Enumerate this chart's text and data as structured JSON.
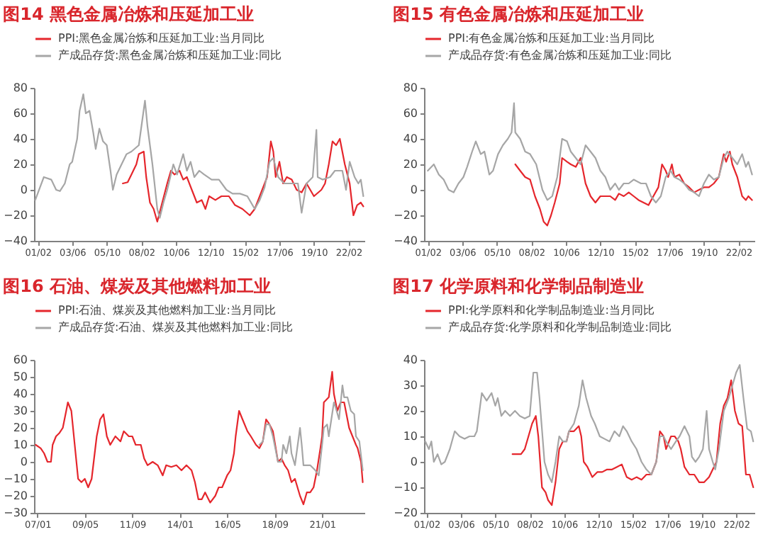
{
  "chart_data": [
    {
      "type": "line",
      "title": "图14  黑色金属冶炼和压延加工业",
      "xlim": [
        "2000-11",
        "2023-03"
      ],
      "xticks": [
        {
          "value": "2001-02",
          "label": "01/02"
        },
        {
          "value": "2003-06",
          "label": "03/06"
        },
        {
          "value": "2005-10",
          "label": "05/10"
        },
        {
          "value": "2008-02",
          "label": "08/02"
        },
        {
          "value": "2010-06",
          "label": "10/06"
        },
        {
          "value": "2012-10",
          "label": "12/10"
        },
        {
          "value": "2015-02",
          "label": "15/02"
        },
        {
          "value": "2017-06",
          "label": "17/06"
        },
        {
          "value": "2019-10",
          "label": "19/10"
        },
        {
          "value": "2022-02",
          "label": "22/02"
        }
      ],
      "ylim": [
        -40,
        80
      ],
      "yticks": [
        -40,
        -20,
        0,
        20,
        40,
        60,
        80
      ],
      "legend": "top",
      "series": [
        {
          "name": "PPI:黑色金属冶炼和压延加工业:当月同比",
          "color": "#e5262c",
          "x": [
            "2006-11",
            "2007-03",
            "2007-06",
            "2007-10",
            "2007-12",
            "2008-04",
            "2008-06",
            "2008-09",
            "2008-12",
            "2009-03",
            "2009-07",
            "2009-11",
            "2010-02",
            "2010-05",
            "2010-09",
            "2010-12",
            "2011-03",
            "2011-07",
            "2011-11",
            "2012-03",
            "2012-06",
            "2012-09",
            "2013-02",
            "2013-07",
            "2014-01",
            "2014-06",
            "2014-12",
            "2015-06",
            "2015-10",
            "2016-02",
            "2016-08",
            "2016-11",
            "2017-01",
            "2017-03",
            "2017-06",
            "2017-09",
            "2017-12",
            "2018-04",
            "2018-08",
            "2018-12",
            "2019-04",
            "2019-10",
            "2020-04",
            "2020-07",
            "2020-10",
            "2021-01",
            "2021-04",
            "2021-07",
            "2021-11",
            "2022-03",
            "2022-06",
            "2022-09",
            "2022-12",
            "2023-02"
          ],
          "values": [
            5,
            6,
            12,
            20,
            28,
            30,
            10,
            -10,
            -15,
            -25,
            -10,
            5,
            15,
            12,
            15,
            8,
            10,
            0,
            -10,
            -8,
            -15,
            -5,
            -8,
            -5,
            -5,
            -12,
            -15,
            -20,
            -15,
            -5,
            10,
            38,
            30,
            10,
            22,
            5,
            10,
            8,
            0,
            -2,
            5,
            -5,
            0,
            5,
            20,
            38,
            35,
            40,
            20,
            5,
            -20,
            -12,
            -10,
            -13
          ]
        },
        {
          "name": "产成品存货:黑色金属冶炼和压延加工业:同比",
          "color": "#a6a6a6",
          "x": [
            "2000-12",
            "2001-07",
            "2002-01",
            "2002-05",
            "2002-08",
            "2002-12",
            "2003-04",
            "2003-06",
            "2003-10",
            "2003-12",
            "2004-03",
            "2004-05",
            "2004-08",
            "2004-11",
            "2005-01",
            "2005-04",
            "2005-07",
            "2005-10",
            "2006-01",
            "2006-03",
            "2006-06",
            "2006-10",
            "2007-02",
            "2007-06",
            "2007-12",
            "2008-05",
            "2008-07",
            "2008-11",
            "2009-03",
            "2009-05",
            "2009-08",
            "2009-11",
            "2010-04",
            "2010-07",
            "2010-12",
            "2011-03",
            "2011-06",
            "2011-09",
            "2012-01",
            "2012-05",
            "2012-11",
            "2013-05",
            "2013-11",
            "2014-04",
            "2014-10",
            "2015-04",
            "2015-10",
            "2016-02",
            "2016-06",
            "2016-10",
            "2017-01",
            "2017-05",
            "2017-10",
            "2018-04",
            "2018-09",
            "2018-12",
            "2019-04",
            "2019-09",
            "2019-12",
            "2020-01",
            "2020-05",
            "2020-11",
            "2021-03",
            "2021-09",
            "2021-12",
            "2022-03",
            "2022-07",
            "2022-10",
            "2022-12",
            "2023-02"
          ],
          "values": [
            -8,
            10,
            8,
            0,
            -1,
            5,
            20,
            22,
            40,
            62,
            75,
            60,
            62,
            45,
            32,
            48,
            38,
            35,
            15,
            0,
            12,
            20,
            28,
            30,
            35,
            70,
            50,
            20,
            -15,
            -22,
            -10,
            0,
            20,
            12,
            28,
            15,
            22,
            10,
            15,
            12,
            8,
            8,
            0,
            -3,
            -3,
            -5,
            -15,
            -8,
            2,
            22,
            25,
            10,
            5,
            5,
            5,
            -18,
            5,
            10,
            47,
            10,
            8,
            10,
            15,
            15,
            0,
            22,
            10,
            5,
            8,
            -5
          ]
        }
      ]
    },
    {
      "type": "line",
      "title": "图15  有色金属冶炼和压延加工业",
      "xlim": [
        "2000-11",
        "2023-03"
      ],
      "xticks": [
        {
          "value": "2001-02",
          "label": "01/02"
        },
        {
          "value": "2003-06",
          "label": "03/06"
        },
        {
          "value": "2005-10",
          "label": "05/10"
        },
        {
          "value": "2008-02",
          "label": "08/02"
        },
        {
          "value": "2010-06",
          "label": "10/06"
        },
        {
          "value": "2012-10",
          "label": "12/10"
        },
        {
          "value": "2015-02",
          "label": "15/02"
        },
        {
          "value": "2017-06",
          "label": "17/06"
        },
        {
          "value": "2019-10",
          "label": "19/10"
        },
        {
          "value": "2022-02",
          "label": "22/02"
        }
      ],
      "ylim": [
        -40,
        80
      ],
      "yticks": [
        -40,
        -20,
        0,
        20,
        40,
        60,
        80
      ],
      "legend": "top",
      "series": [
        {
          "name": "PPI:有色金属冶炼和压延加工业:当月同比",
          "color": "#e5262c",
          "x": [
            "2007-01",
            "2007-05",
            "2007-09",
            "2008-01",
            "2008-05",
            "2008-09",
            "2008-12",
            "2009-03",
            "2009-06",
            "2009-09",
            "2010-01",
            "2010-03",
            "2010-07",
            "2010-10",
            "2011-02",
            "2011-06",
            "2011-10",
            "2012-02",
            "2012-06",
            "2012-10",
            "2013-02",
            "2013-06",
            "2013-10",
            "2014-01",
            "2014-05",
            "2014-09",
            "2015-01",
            "2015-05",
            "2015-09",
            "2016-01",
            "2016-05",
            "2016-09",
            "2016-12",
            "2017-03",
            "2017-05",
            "2017-08",
            "2017-10",
            "2018-02",
            "2018-06",
            "2018-10",
            "2019-02",
            "2019-06",
            "2019-10",
            "2020-02",
            "2020-06",
            "2020-10",
            "2021-02",
            "2021-04",
            "2021-07",
            "2021-09",
            "2022-01",
            "2022-05",
            "2022-08",
            "2022-10",
            "2023-01"
          ],
          "values": [
            20,
            15,
            10,
            8,
            -5,
            -15,
            -25,
            -28,
            -20,
            -10,
            5,
            25,
            22,
            20,
            18,
            25,
            5,
            -5,
            -10,
            -5,
            -5,
            -5,
            -8,
            -3,
            -5,
            -2,
            -5,
            -8,
            -10,
            -12,
            -5,
            2,
            20,
            15,
            10,
            20,
            10,
            12,
            5,
            2,
            -2,
            0,
            2,
            2,
            5,
            10,
            28,
            22,
            30,
            20,
            10,
            -5,
            -8,
            -5,
            -8
          ]
        },
        {
          "name": "产成品存货:有色金属冶炼和压延加工业:同比",
          "color": "#a6a6a6",
          "x": [
            "2001-02",
            "2001-07",
            "2001-11",
            "2002-03",
            "2002-07",
            "2002-11",
            "2003-03",
            "2003-07",
            "2003-10",
            "2004-02",
            "2004-05",
            "2004-09",
            "2004-12",
            "2005-04",
            "2005-07",
            "2005-11",
            "2006-03",
            "2006-07",
            "2006-10",
            "2006-12",
            "2007-01",
            "2007-05",
            "2007-09",
            "2008-01",
            "2008-06",
            "2008-11",
            "2009-03",
            "2009-07",
            "2009-11",
            "2010-03",
            "2010-07",
            "2010-10",
            "2011-02",
            "2011-06",
            "2011-10",
            "2012-02",
            "2012-06",
            "2012-10",
            "2013-02",
            "2013-06",
            "2013-10",
            "2014-01",
            "2014-05",
            "2014-09",
            "2015-01",
            "2015-07",
            "2015-11",
            "2016-03",
            "2016-07",
            "2016-11",
            "2017-03",
            "2017-07",
            "2017-10",
            "2018-02",
            "2018-06",
            "2018-10",
            "2019-02",
            "2019-06",
            "2019-10",
            "2020-02",
            "2020-06",
            "2020-10",
            "2021-02",
            "2021-05",
            "2021-09",
            "2022-01",
            "2022-05",
            "2022-08",
            "2022-10",
            "2023-01"
          ],
          "values": [
            15,
            20,
            12,
            8,
            0,
            -2,
            5,
            10,
            18,
            30,
            38,
            28,
            30,
            12,
            15,
            28,
            35,
            40,
            45,
            68,
            45,
            40,
            30,
            28,
            20,
            0,
            -8,
            -5,
            10,
            40,
            38,
            30,
            25,
            20,
            35,
            30,
            25,
            15,
            10,
            0,
            5,
            0,
            5,
            5,
            8,
            5,
            5,
            -5,
            -10,
            -5,
            10,
            15,
            10,
            8,
            5,
            0,
            -2,
            -5,
            5,
            12,
            8,
            10,
            25,
            30,
            25,
            20,
            28,
            18,
            22,
            12
          ]
        }
      ]
    },
    {
      "type": "line",
      "title": "图16  石油、煤炭及其他燃料加工业",
      "xlim": [
        "2006-11",
        "2023-02"
      ],
      "xticks": [
        {
          "value": "2007-01",
          "label": "07/01"
        },
        {
          "value": "2009-05",
          "label": "09/05"
        },
        {
          "value": "2011-09",
          "label": "11/09"
        },
        {
          "value": "2014-01",
          "label": "14/01"
        },
        {
          "value": "2016-05",
          "label": "16/05"
        },
        {
          "value": "2018-09",
          "label": "18/09"
        },
        {
          "value": "2021-01",
          "label": "21/01"
        }
      ],
      "ylim": [
        -30,
        60
      ],
      "yticks": [
        -30,
        -20,
        -10,
        0,
        10,
        20,
        30,
        40,
        50,
        60
      ],
      "legend": "top",
      "series": [
        {
          "name": "PPI:石油、煤炭及其他燃料加工业:当月同比",
          "color": "#e5262c",
          "x": [
            "2006-12",
            "2007-03",
            "2007-05",
            "2007-07",
            "2007-09",
            "2007-10",
            "2007-12",
            "2008-02",
            "2008-04",
            "2008-06",
            "2008-07",
            "2008-09",
            "2008-11",
            "2009-01",
            "2009-03",
            "2009-05",
            "2009-07",
            "2009-09",
            "2009-12",
            "2010-02",
            "2010-04",
            "2010-06",
            "2010-08",
            "2010-11",
            "2011-02",
            "2011-04",
            "2011-07",
            "2011-09",
            "2011-11",
            "2012-02",
            "2012-04",
            "2012-06",
            "2012-09",
            "2012-12",
            "2013-03",
            "2013-05",
            "2013-08",
            "2013-11",
            "2014-02",
            "2014-05",
            "2014-08",
            "2014-10",
            "2014-12",
            "2015-02",
            "2015-04",
            "2015-07",
            "2015-10",
            "2015-12",
            "2016-02",
            "2016-05",
            "2016-07",
            "2016-09",
            "2016-10",
            "2016-12",
            "2017-02",
            "2017-05",
            "2017-07",
            "2017-10",
            "2017-12",
            "2018-02",
            "2018-04",
            "2018-06",
            "2018-08",
            "2018-11",
            "2019-01",
            "2019-03",
            "2019-05",
            "2019-07",
            "2019-09",
            "2019-12",
            "2020-02",
            "2020-04",
            "2020-06",
            "2020-08",
            "2020-10",
            "2020-12",
            "2021-01",
            "2021-02",
            "2021-05",
            "2021-07",
            "2021-08",
            "2021-10",
            "2021-12",
            "2022-02",
            "2022-05",
            "2022-07",
            "2022-09",
            "2022-10",
            "2022-12",
            "2023-01"
          ],
          "values": [
            10,
            8,
            5,
            0,
            0,
            10,
            15,
            17,
            20,
            30,
            35,
            30,
            10,
            -10,
            -12,
            -10,
            -15,
            -10,
            15,
            25,
            28,
            15,
            10,
            15,
            12,
            18,
            15,
            15,
            10,
            10,
            2,
            -2,
            0,
            -2,
            -8,
            -2,
            -3,
            -2,
            -5,
            -2,
            -5,
            -12,
            -22,
            -22,
            -18,
            -24,
            -20,
            -15,
            -15,
            -8,
            -5,
            5,
            15,
            30,
            25,
            18,
            15,
            10,
            8,
            12,
            25,
            22,
            18,
            0,
            2,
            -2,
            -5,
            -12,
            -10,
            -20,
            -25,
            -18,
            -18,
            -15,
            -5,
            8,
            15,
            35,
            38,
            53,
            40,
            30,
            35,
            35,
            20,
            15,
            10,
            8,
            0,
            -12
          ]
        },
        {
          "name": "产成品存货:石油、煤炭及其他燃料加工业:同比",
          "color": "#a6a6a6",
          "x": [
            "2017-12",
            "2018-02",
            "2018-04",
            "2018-06",
            "2018-08",
            "2018-11",
            "2019-01",
            "2019-02",
            "2019-04",
            "2019-06",
            "2019-07",
            "2019-09",
            "2019-12",
            "2020-01",
            "2020-02",
            "2020-04",
            "2020-06",
            "2020-09",
            "2020-11",
            "2021-01",
            "2021-02",
            "2021-04",
            "2021-05",
            "2021-08",
            "2021-09",
            "2021-11",
            "2022-01",
            "2022-02",
            "2022-04",
            "2022-06",
            "2022-08",
            "2022-09",
            "2022-11",
            "2023-01"
          ],
          "values": [
            10,
            12,
            22,
            22,
            15,
            0,
            0,
            10,
            5,
            15,
            5,
            -2,
            20,
            10,
            -2,
            -2,
            -2,
            -5,
            -8,
            10,
            20,
            22,
            15,
            35,
            32,
            25,
            45,
            38,
            38,
            30,
            28,
            15,
            12,
            -5
          ]
        }
      ]
    },
    {
      "type": "line",
      "title": "图17  化学原料和化学制品制造业",
      "xlim": [
        "2000-12",
        "2023-05"
      ],
      "xticks": [
        {
          "value": "2001-02",
          "label": "01/02"
        },
        {
          "value": "2003-06",
          "label": "03/06"
        },
        {
          "value": "2005-10",
          "label": "05/10"
        },
        {
          "value": "2008-02",
          "label": "08/02"
        },
        {
          "value": "2010-06",
          "label": "10/06"
        },
        {
          "value": "2012-10",
          "label": "12/10"
        },
        {
          "value": "2015-02",
          "label": "15/02"
        },
        {
          "value": "2017-06",
          "label": "17/06"
        },
        {
          "value": "2019-10",
          "label": "19/10"
        },
        {
          "value": "2022-02",
          "label": "22/02"
        }
      ],
      "ylim": [
        -20,
        40
      ],
      "yticks": [
        -20,
        -10,
        0,
        10,
        20,
        30,
        40
      ],
      "legend": "top",
      "series": [
        {
          "name": "PPI:化学原料和化学制品制造业:当月同比",
          "color": "#e5262c",
          "x": [
            "2006-12",
            "2007-04",
            "2007-07",
            "2007-10",
            "2008-01",
            "2008-04",
            "2008-07",
            "2008-09",
            "2008-12",
            "2009-03",
            "2009-05",
            "2009-08",
            "2009-11",
            "2010-02",
            "2010-05",
            "2010-08",
            "2010-10",
            "2011-02",
            "2011-06",
            "2011-08",
            "2011-10",
            "2012-01",
            "2012-05",
            "2012-09",
            "2013-01",
            "2013-05",
            "2013-09",
            "2014-01",
            "2014-05",
            "2014-09",
            "2015-01",
            "2015-05",
            "2015-09",
            "2016-01",
            "2016-05",
            "2016-09",
            "2016-12",
            "2017-03",
            "2017-05",
            "2017-09",
            "2017-12",
            "2018-03",
            "2018-05",
            "2018-08",
            "2018-12",
            "2019-04",
            "2019-08",
            "2019-12",
            "2020-04",
            "2020-07",
            "2020-10",
            "2021-01",
            "2021-04",
            "2021-07",
            "2021-10",
            "2022-01",
            "2022-04",
            "2022-07",
            "2022-10",
            "2023-01",
            "2023-04"
          ],
          "values": [
            3,
            3,
            3,
            5,
            10,
            15,
            18,
            10,
            -10,
            -12,
            -15,
            -17,
            -8,
            5,
            8,
            8,
            12,
            12,
            14,
            10,
            0,
            -2,
            -6,
            -4,
            -4,
            -3,
            -3,
            -2,
            -1,
            -6,
            -7,
            -6,
            -7,
            -5,
            -5,
            0,
            12,
            10,
            5,
            10,
            10,
            8,
            5,
            -2,
            -5,
            -5,
            -8,
            -8,
            -6,
            -3,
            0,
            15,
            22,
            25,
            32,
            20,
            15,
            14,
            -5,
            -5,
            -10
          ]
        },
        {
          "name": "产成品存货:化学原料和化学制品制造业:同比",
          "color": "#a6a6a6",
          "x": [
            "2001-01",
            "2001-04",
            "2001-06",
            "2001-08",
            "2001-11",
            "2002-02",
            "2002-05",
            "2002-09",
            "2003-01",
            "2003-05",
            "2003-09",
            "2004-01",
            "2004-05",
            "2004-07",
            "2004-11",
            "2005-03",
            "2005-07",
            "2005-10",
            "2005-12",
            "2006-03",
            "2006-06",
            "2006-10",
            "2007-02",
            "2007-06",
            "2007-10",
            "2008-02",
            "2008-05",
            "2008-08",
            "2008-10",
            "2009-02",
            "2009-05",
            "2009-08",
            "2009-11",
            "2010-02",
            "2010-05",
            "2010-08",
            "2010-10",
            "2011-02",
            "2011-06",
            "2011-09",
            "2011-12",
            "2012-04",
            "2012-07",
            "2012-11",
            "2013-03",
            "2013-07",
            "2013-11",
            "2014-03",
            "2014-06",
            "2014-09",
            "2015-01",
            "2015-05",
            "2015-09",
            "2016-01",
            "2016-05",
            "2016-09",
            "2016-12",
            "2017-03",
            "2017-05",
            "2017-09",
            "2018-01",
            "2018-04",
            "2018-08",
            "2018-12",
            "2019-02",
            "2019-05",
            "2019-08",
            "2019-11",
            "2020-02",
            "2020-04",
            "2020-07",
            "2020-09",
            "2020-12",
            "2021-04",
            "2021-08",
            "2021-11",
            "2022-02",
            "2022-05",
            "2022-08",
            "2022-11",
            "2023-02",
            "2023-04"
          ],
          "values": [
            8,
            5,
            8,
            0,
            3,
            -1,
            0,
            5,
            12,
            10,
            9,
            10,
            10,
            12,
            27,
            24,
            27,
            22,
            25,
            18,
            20,
            18,
            20,
            18,
            17,
            18,
            35,
            35,
            25,
            0,
            -5,
            -8,
            0,
            10,
            8,
            8,
            12,
            15,
            22,
            32,
            25,
            18,
            15,
            10,
            9,
            8,
            12,
            10,
            14,
            12,
            8,
            5,
            0,
            -3,
            -5,
            0,
            10,
            10,
            8,
            5,
            8,
            10,
            14,
            10,
            2,
            0,
            2,
            5,
            20,
            5,
            0,
            -3,
            5,
            20,
            25,
            30,
            35,
            38,
            25,
            13,
            12,
            8
          ]
        }
      ]
    }
  ]
}
